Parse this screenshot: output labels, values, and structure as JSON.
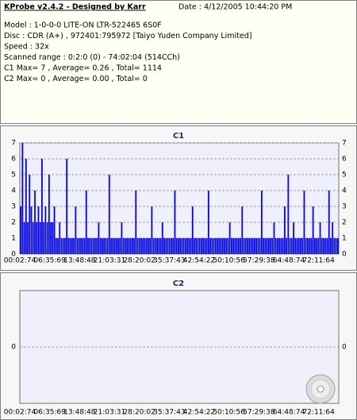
{
  "header": {
    "title": "KProbe v2.4.2 - Designed by Karr",
    "date": "Date : 4/12/2005 10:44:20 PM",
    "lines": [
      "Model : 1-0-0-0 LITE-ON LTR-522465      6S0F",
      "Disc : CDR (A+) , 972401:795972 [Taiyo Yuden Company Limited]",
      "Speed : 32x",
      "Scanned range : 0:2:0 (0) - 74:02:04 (514CCh)",
      "C1 Max= 7 , Average= 0.26 , Total= 1114",
      "C2 Max= 0 , Average= 0.00 , Total= 0"
    ]
  },
  "chart_data": [
    {
      "type": "bar",
      "title": "C1",
      "color": "#0000ff",
      "grid": true,
      "ylim": [
        0,
        7
      ],
      "yticks": [
        0,
        1,
        2,
        3,
        4,
        5,
        6,
        7
      ],
      "x_labels": [
        "00:02:74",
        "06:35:69",
        "13:48:48",
        "21:03:31",
        "28:20:02",
        "35:37:43",
        "42:54:22",
        "50:10:56",
        "57:29:38",
        "64:48:74",
        "72:11:64"
      ],
      "values": [
        3,
        7,
        2,
        6,
        2,
        5,
        3,
        2,
        4,
        2,
        3,
        2,
        6,
        2,
        3,
        2,
        5,
        2,
        2,
        3,
        1,
        1,
        2,
        1,
        1,
        1,
        6,
        1,
        1,
        1,
        1,
        3,
        1,
        1,
        1,
        1,
        1,
        4,
        1,
        1,
        1,
        1,
        1,
        1,
        2,
        1,
        1,
        1,
        1,
        1,
        5,
        1,
        1,
        1,
        1,
        1,
        1,
        2,
        1,
        1,
        1,
        1,
        1,
        1,
        1,
        4,
        1,
        1,
        1,
        1,
        1,
        1,
        1,
        1,
        3,
        1,
        1,
        1,
        1,
        1,
        2,
        1,
        1,
        1,
        1,
        1,
        1,
        4,
        1,
        1,
        1,
        1,
        1,
        1,
        1,
        1,
        1,
        3,
        1,
        1,
        1,
        1,
        1,
        1,
        1,
        1,
        4,
        1,
        1,
        1,
        1,
        1,
        1,
        1,
        1,
        1,
        1,
        1,
        2,
        1,
        1,
        1,
        1,
        1,
        1,
        3,
        1,
        1,
        1,
        1,
        1,
        1,
        1,
        1,
        1,
        1,
        4,
        1,
        1,
        1,
        1,
        1,
        1,
        2,
        1,
        1,
        1,
        1,
        1,
        3,
        1,
        5,
        1,
        1,
        2,
        1,
        1,
        1,
        1,
        1,
        4,
        1,
        1,
        1,
        1,
        3,
        1,
        1,
        1,
        2,
        1,
        1,
        1,
        1,
        4,
        1,
        2,
        1,
        1,
        1
      ]
    },
    {
      "type": "bar",
      "title": "C2",
      "color": "#0000ff",
      "grid": true,
      "ylim": [
        -1,
        1
      ],
      "yticks": [
        0
      ],
      "x_labels": [
        "00:02:74",
        "06:35:69",
        "13:48:48",
        "21:03:31",
        "28:20:02",
        "35:37:43",
        "42:54:22",
        "50:10:56",
        "57:29:38",
        "64:48:74",
        "72:11:64"
      ]
    }
  ]
}
